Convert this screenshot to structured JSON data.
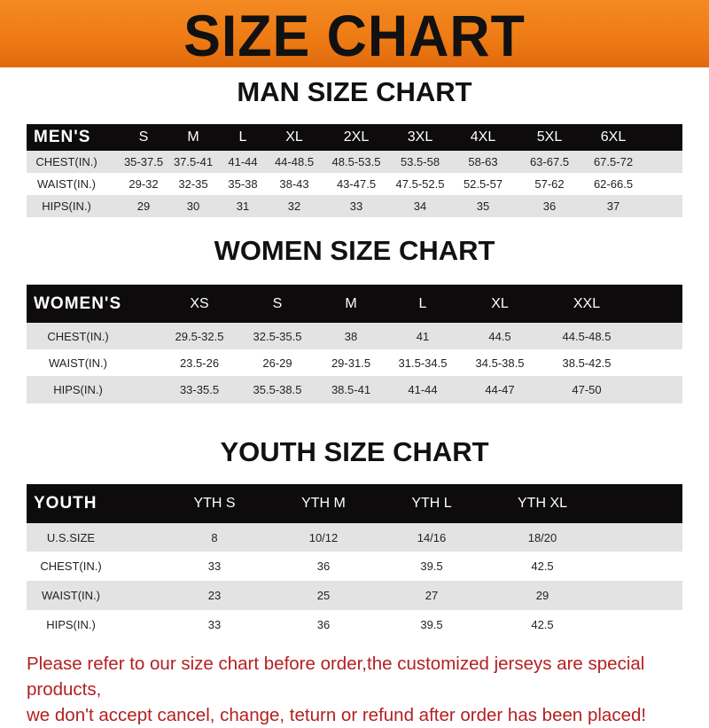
{
  "banner": {
    "title": "SIZE CHART",
    "color": "#ee7a14"
  },
  "men": {
    "heading": "MAN SIZE CHART",
    "header": [
      "MEN'S",
      "S",
      "M",
      "L",
      "XL",
      "2XL",
      "3XL",
      "4XL",
      "5XL",
      "6XL"
    ],
    "rows": [
      [
        "CHEST(IN.)",
        "35-37.5",
        "37.5-41",
        "41-44",
        "44-48.5",
        "48.5-53.5",
        "53.5-58",
        "58-63",
        "63-67.5",
        "67.5-72"
      ],
      [
        "WAIST(IN.)",
        "29-32",
        "32-35",
        "35-38",
        "38-43",
        "43-47.5",
        "47.5-52.5",
        "52.5-57",
        "57-62",
        "62-66.5"
      ],
      [
        "HIPS(IN.)",
        "29",
        "30",
        "31",
        "32",
        "33",
        "34",
        "35",
        "36",
        "37"
      ]
    ]
  },
  "women": {
    "heading": "WOMEN SIZE CHART",
    "header": [
      "WOMEN'S",
      "XS",
      "S",
      "M",
      "L",
      "XL",
      "XXL"
    ],
    "rows": [
      [
        "CHEST(IN.)",
        "29.5-32.5",
        "32.5-35.5",
        "38",
        "41",
        "44.5",
        "44.5-48.5"
      ],
      [
        "WAIST(IN.)",
        "23.5-26",
        "26-29",
        "29-31.5",
        "31.5-34.5",
        "34.5-38.5",
        "38.5-42.5"
      ],
      [
        "HIPS(IN.)",
        "33-35.5",
        "35.5-38.5",
        "38.5-41",
        "41-44",
        "44-47",
        "47-50"
      ]
    ]
  },
  "youth": {
    "heading": "YOUTH SIZE CHART",
    "header": [
      "YOUTH",
      "YTH S",
      "YTH M",
      "YTH L",
      "YTH XL"
    ],
    "rows": [
      [
        "U.S.SIZE",
        "8",
        "10/12",
        "14/16",
        "18/20"
      ],
      [
        "CHEST(IN.)",
        "33",
        "36",
        "39.5",
        "42.5"
      ],
      [
        "WAIST(IN.)",
        "23",
        "25",
        "27",
        "29"
      ],
      [
        "HIPS(IN.)",
        "33",
        "36",
        "39.5",
        "42.5"
      ]
    ]
  },
  "notice": {
    "line1": "Please refer to our size chart before order,the customized jerseys are special products,",
    "line2": "we don't accept cancel, change, teturn or refund after order has been placed!",
    "color": "#b42020"
  }
}
